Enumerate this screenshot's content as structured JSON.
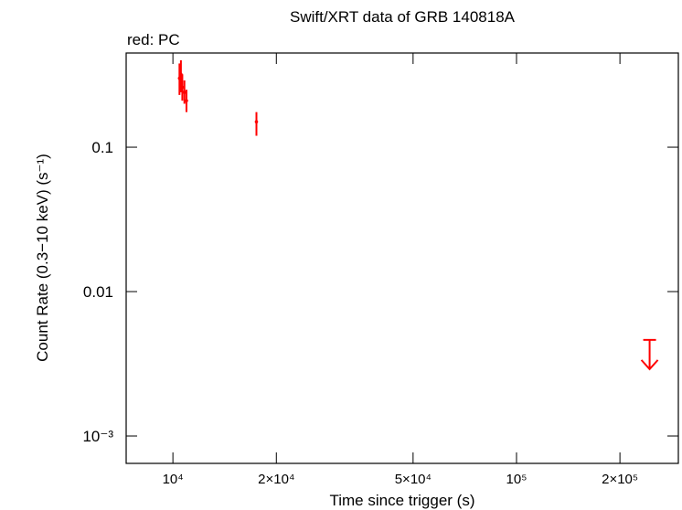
{
  "chart_data": {
    "type": "scatter",
    "title": "Swift/XRT data of GRB 140818A",
    "subtitle": "red: PC",
    "x_label": "Time since trigger (s)",
    "y_label": "Count Rate (0.3−10 keV) (s⁻¹)",
    "xscale": "log",
    "yscale": "log",
    "xlim": [
      7310,
      295800
    ],
    "ylim": [
      0.000646,
      0.449
    ],
    "xticks": [
      {
        "value": 10000,
        "label": "10⁴"
      },
      {
        "value": 20000,
        "label": "2×10⁴"
      },
      {
        "value": 50000,
        "label": "5×10⁴"
      },
      {
        "value": 100000,
        "label": "10⁵"
      },
      {
        "value": 200000,
        "label": "2×10⁵"
      }
    ],
    "yticks": [
      {
        "value": 0.001,
        "label": "10⁻³"
      },
      0.01,
      0.1
    ],
    "series": [
      {
        "name": "PC",
        "color": "#ff0000",
        "x": [
          10450,
          10550,
          10650,
          10800,
          10950,
          17500
        ],
        "values": [
          0.3,
          0.32,
          0.26,
          0.24,
          0.21,
          0.15
        ],
        "yerr_minus": [
          0.07,
          0.08,
          0.05,
          0.04,
          0.035,
          0.03
        ],
        "yerr_plus": [
          0.08,
          0.08,
          0.06,
          0.05,
          0.04,
          0.025
        ]
      }
    ],
    "upper_limits": {
      "color": "#ff0000",
      "x": [
        244000
      ],
      "values": [
        0.00463
      ]
    }
  }
}
